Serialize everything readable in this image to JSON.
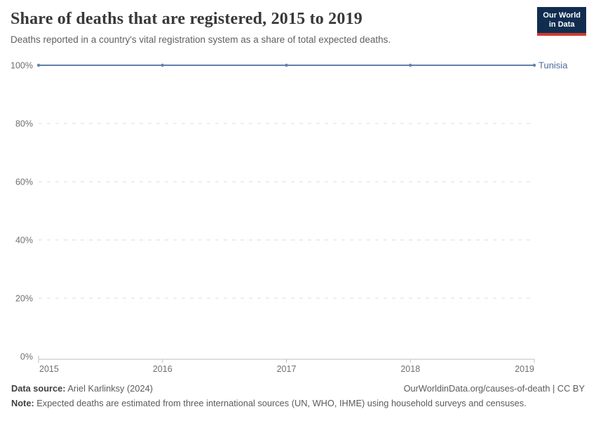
{
  "header": {
    "title": "Share of deaths that are registered, 2015 to 2019",
    "subtitle": "Deaths reported in a country's vital registration system as a share of total expected deaths.",
    "logo": {
      "line1": "Our World",
      "line2": "in Data",
      "bg_color": "#102d50",
      "accent_color": "#cf3a30"
    }
  },
  "chart_data": {
    "type": "line",
    "title": "Share of deaths that are registered, 2015 to 2019",
    "x": [
      2015,
      2016,
      2017,
      2018,
      2019
    ],
    "x_tick_labels": [
      "2015",
      "2016",
      "2017",
      "2018",
      "2019"
    ],
    "y_ticks": [
      0,
      20,
      40,
      60,
      80,
      100
    ],
    "y_tick_labels": [
      "0%",
      "20%",
      "40%",
      "60%",
      "80%",
      "100%"
    ],
    "ylim": [
      0,
      100
    ],
    "grid": "horizontal-dashed",
    "grid_color": "#dcdcdc",
    "axis_color": "#bfbfbf",
    "tick_label_color": "#6f6f6f",
    "legend_position": "end-of-line-label",
    "series": [
      {
        "name": "Tunisia",
        "color": "#6080ae",
        "label_color": "#4c6a9c",
        "values": [
          100,
          100,
          100,
          100,
          100
        ]
      }
    ]
  },
  "footer": {
    "data_source_label": "Data source:",
    "data_source_value": " Ariel Karlinksy (2024)",
    "attribution": "OurWorldinData.org/causes-of-death | CC BY",
    "note_label": "Note:",
    "note_value": " Expected deaths are estimated from three international sources (UN, WHO, IHME) using household surveys and censuses."
  }
}
